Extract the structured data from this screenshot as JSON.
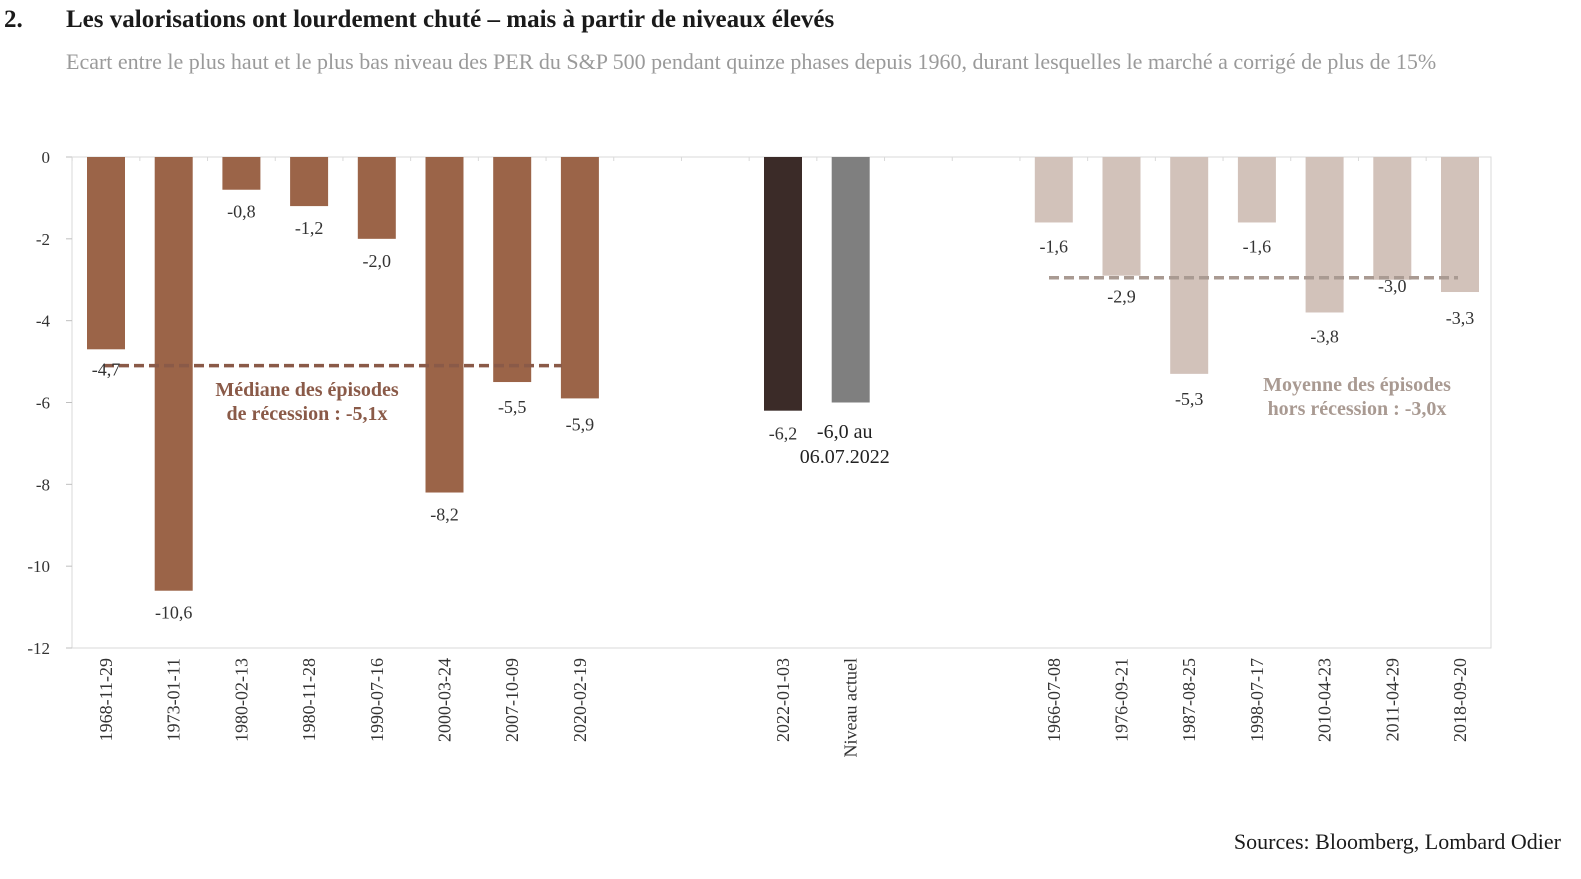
{
  "header": {
    "figure_number": "2.",
    "title": "Les valorisations ont lourdement chuté – mais à partir de niveaux élevés",
    "subtitle": "Ecart entre le plus haut et le plus bas niveau des PER du S&P 500 pendant quinze phases depuis 1960, durant lesquelles le marché a corrigé de plus de 15%"
  },
  "footer": {
    "source": "Sources: Bloomberg, Lombard Odier"
  },
  "colors": {
    "recession": "#9b6448",
    "current_dark": "#3b2b28",
    "current_grey": "#7f7f7f",
    "non_recession": "#d2c2ba",
    "recession_line": "#8a5a48",
    "non_recession_line": "#a99a92",
    "annotation_recession": "#8a5a48",
    "annotation_non_recession": "#a99a92"
  },
  "chart_data": {
    "type": "bar",
    "ylim": [
      -12,
      0
    ],
    "yticks": [
      0,
      -2,
      -4,
      -6,
      -8,
      -10,
      -12
    ],
    "ytick_labels": [
      "0",
      "-2",
      "-4",
      "-6",
      "-8",
      "-10",
      "-12"
    ],
    "grid": false,
    "groups": [
      {
        "group": "recession",
        "color_key": "recession",
        "bars": [
          {
            "category": "1968-11-29",
            "value": -4.7,
            "label": "-4,7"
          },
          {
            "category": "1973-01-11",
            "value": -10.6,
            "label": "-10,6"
          },
          {
            "category": "1980-02-13",
            "value": -0.8,
            "label": "-0,8"
          },
          {
            "category": "1980-11-28",
            "value": -1.2,
            "label": "-1,2"
          },
          {
            "category": "1990-07-16",
            "value": -2.0,
            "label": "-2,0"
          },
          {
            "category": "2000-03-24",
            "value": -8.2,
            "label": "-8,2"
          },
          {
            "category": "2007-10-09",
            "value": -5.5,
            "label": "-5,5"
          },
          {
            "category": "2020-02-19",
            "value": -5.9,
            "label": "-5,9"
          }
        ],
        "reference_line": {
          "value": -5.1,
          "annotation": [
            "Médiane des épisodes",
            "de récession : -5,1x"
          ]
        }
      },
      {
        "group": "current",
        "bars": [
          {
            "category": "2022-01-03",
            "value": -6.2,
            "label": "-6,2",
            "color_key": "current_dark"
          },
          {
            "category": "Niveau actuel",
            "value": -6.0,
            "label": "-6,0 au",
            "label2": "06.07.2022",
            "color_key": "current_grey"
          }
        ]
      },
      {
        "group": "non_recession",
        "color_key": "non_recession",
        "bars": [
          {
            "category": "1966-07-08",
            "value": -1.6,
            "label": "-1,6"
          },
          {
            "category": "1976-09-21",
            "value": -2.9,
            "label": "-2,9"
          },
          {
            "category": "1987-08-25",
            "value": -5.3,
            "label": "-5,3"
          },
          {
            "category": "1998-07-17",
            "value": -1.6,
            "label": "-1,6"
          },
          {
            "category": "2010-04-23",
            "value": -3.8,
            "label": "-3,8"
          },
          {
            "category": "2011-04-29",
            "value": -3.0,
            "label": "-3,0"
          },
          {
            "category": "2018-09-20",
            "value": -3.3,
            "label": "-3,3"
          }
        ],
        "reference_line": {
          "value": -2.95,
          "annotation": [
            "Moyenne des épisodes",
            "hors récession : -3,0x"
          ]
        }
      }
    ]
  }
}
